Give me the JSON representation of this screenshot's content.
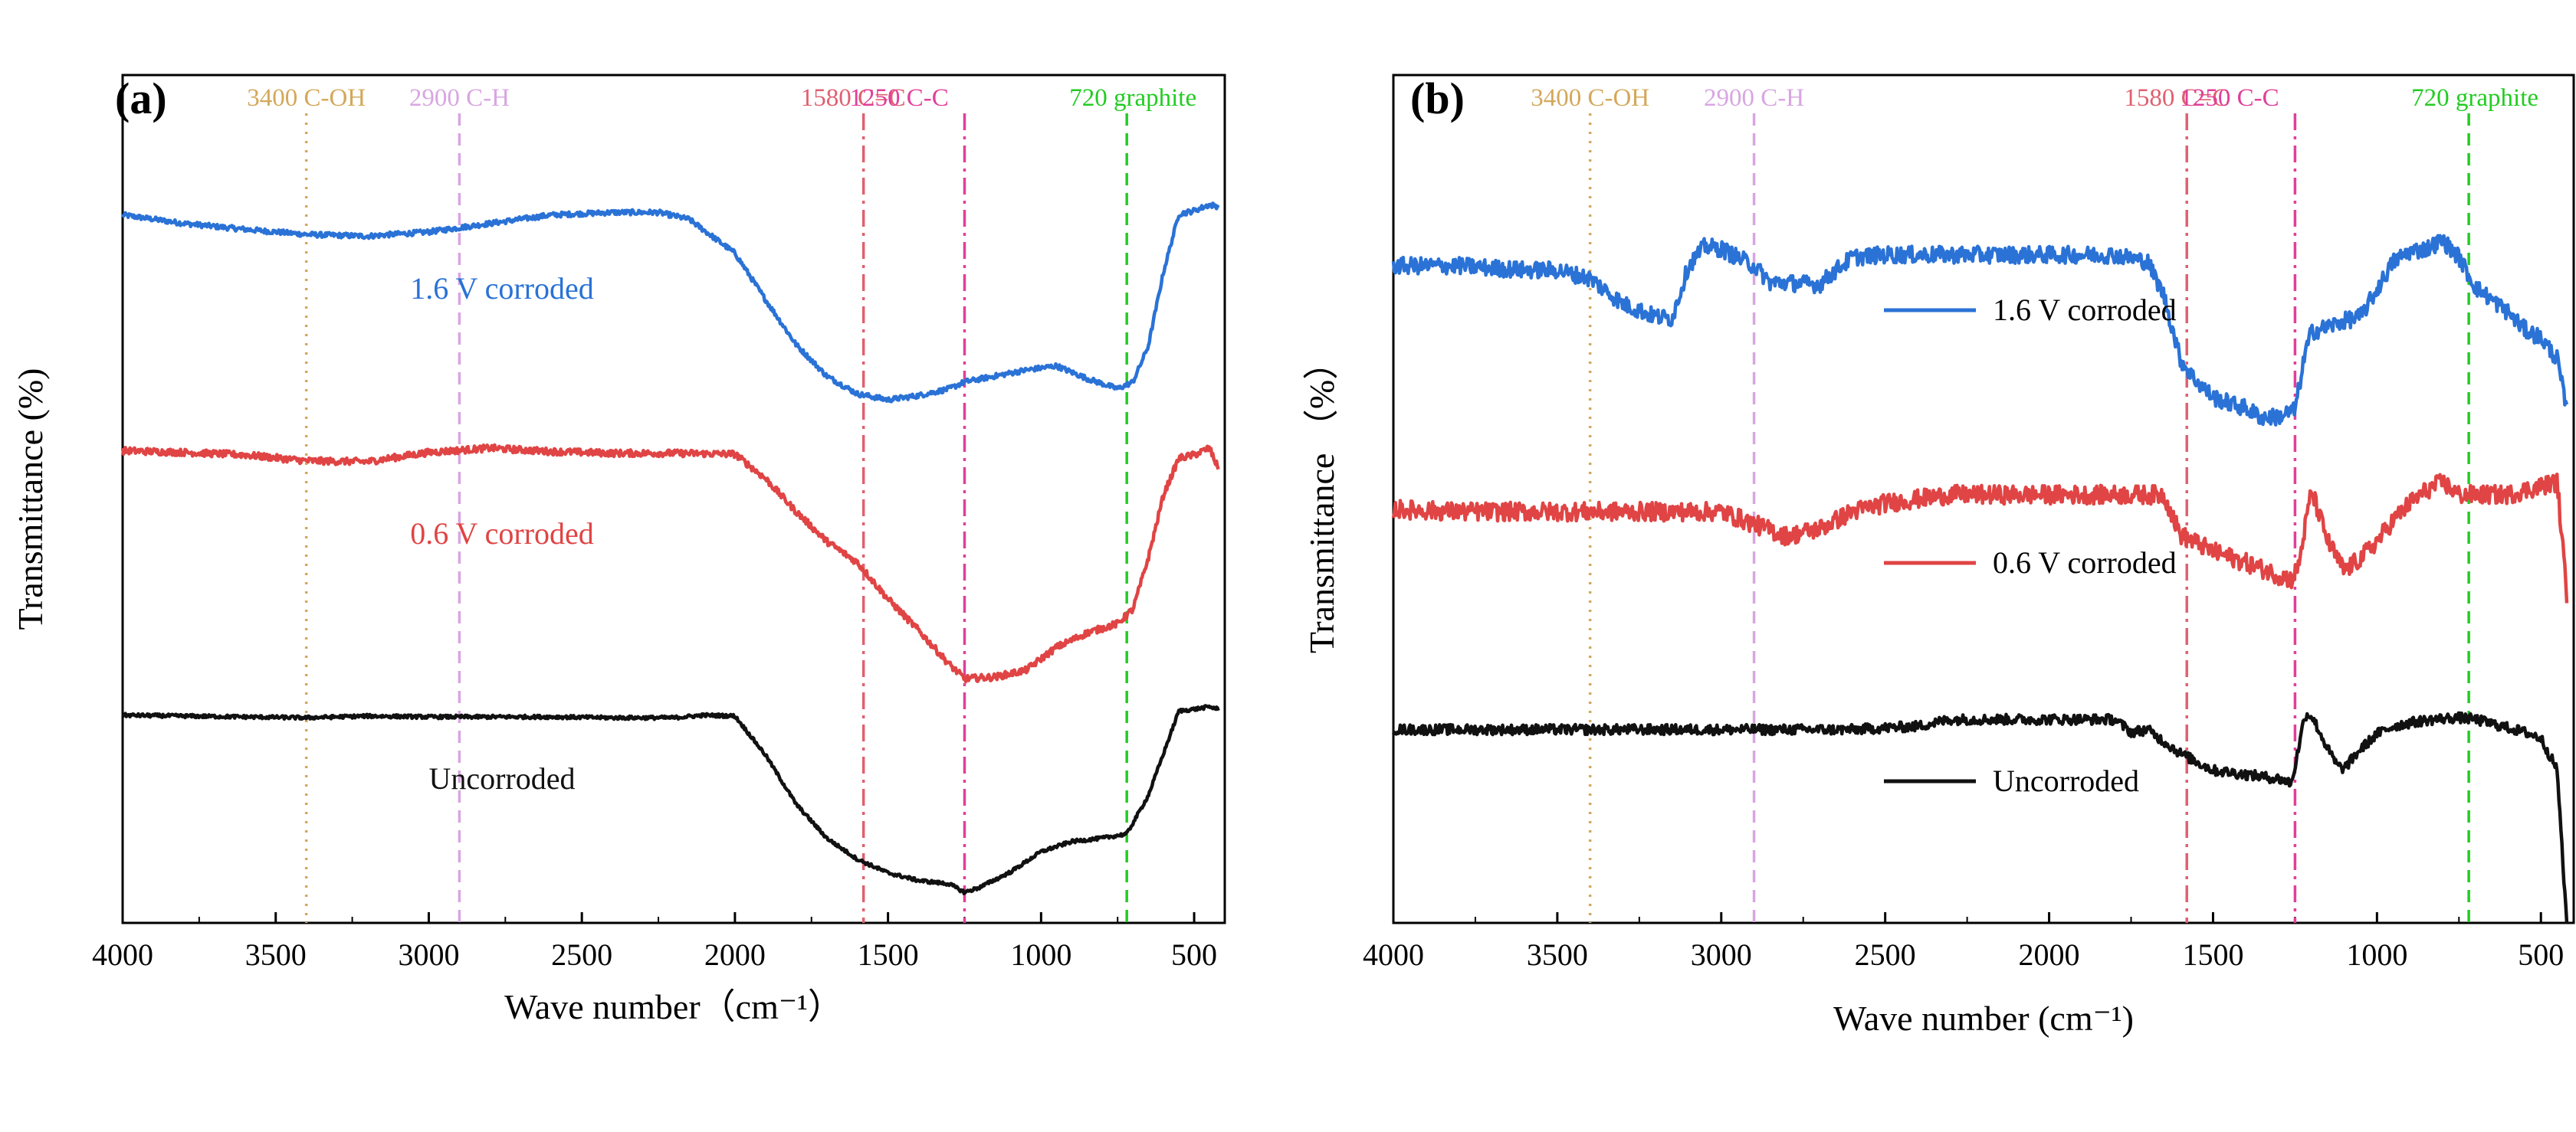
{
  "chart_data": [
    {
      "type": "line",
      "panel_label": "(a)",
      "xlabel": "Wave number（cm⁻¹）",
      "ylabel": "Transmittance (%)",
      "xlim": [
        4000,
        400
      ],
      "x_reversed": true,
      "ylim": [
        0,
        100
      ],
      "xticks": [
        4000,
        3500,
        3000,
        2500,
        2000,
        1500,
        1000,
        500
      ],
      "peaks": [
        {
          "x": 3400,
          "label": "3400 C-OH",
          "color": "#d4a85a",
          "style": "dotted"
        },
        {
          "x": 2900,
          "label": "2900 C-H",
          "color": "#d8a6e2",
          "style": "dashed"
        },
        {
          "x": 1580,
          "label": "1580 C=C",
          "color": "#e06070",
          "style": "dashdot"
        },
        {
          "x": 1250,
          "label": "1250 C-C",
          "color": "#e0409a",
          "style": "dashdot"
        },
        {
          "x": 720,
          "label": "720 graphite",
          "color": "#22cc22",
          "style": "dashed"
        }
      ],
      "series": [
        {
          "name": "1.6 V corroded",
          "color": "#2a72d6",
          "legend": "label",
          "x": [
            4000,
            3800,
            3600,
            3400,
            3200,
            3000,
            2800,
            2600,
            2400,
            2250,
            2150,
            2000,
            1900,
            1800,
            1700,
            1600,
            1500,
            1400,
            1300,
            1250,
            1150,
            1050,
            950,
            850,
            750,
            700,
            650,
            600,
            550,
            500,
            450,
            420
          ],
          "y": [
            83.5,
            82.5,
            81.8,
            81.2,
            81,
            81.5,
            82.5,
            83.5,
            83.8,
            83.8,
            83,
            79,
            73.5,
            68.2,
            64.5,
            62.4,
            61.7,
            62.2,
            63,
            63.8,
            64.5,
            65.2,
            65.7,
            64.2,
            63,
            63.8,
            68,
            76.8,
            83.6,
            84,
            84.7,
            84.5
          ],
          "noise": 0.3
        },
        {
          "name": "0.6 V corroded",
          "color": "#e04444",
          "legend": "label",
          "x": [
            4000,
            3800,
            3600,
            3400,
            3200,
            3000,
            2800,
            2600,
            2400,
            2200,
            2000,
            1900,
            1800,
            1700,
            1600,
            1500,
            1400,
            1300,
            1250,
            1150,
            1050,
            950,
            850,
            750,
            700,
            650,
            600,
            550,
            500,
            450,
            420
          ],
          "y": [
            55.7,
            55.5,
            55.2,
            54.5,
            54.4,
            55.5,
            56,
            55.6,
            55.4,
            55.4,
            55.3,
            52.4,
            48.5,
            45,
            42.5,
            38.2,
            34.5,
            30.5,
            28.8,
            29,
            29.8,
            32.5,
            34.2,
            35.3,
            37,
            43,
            50.5,
            54.8,
            55.2,
            56,
            53.5
          ],
          "noise": 0.4
        },
        {
          "name": "Uncorroded",
          "color": "#111111",
          "legend": "label",
          "x": [
            4000,
            3800,
            3600,
            3400,
            3200,
            3000,
            2800,
            2600,
            2400,
            2200,
            2100,
            2000,
            1900,
            1800,
            1700,
            1600,
            1500,
            1400,
            1300,
            1250,
            1200,
            1100,
            1000,
            900,
            800,
            720,
            650,
            600,
            550,
            500,
            450,
            420
          ],
          "y": [
            24.5,
            24.4,
            24.3,
            24.2,
            24.4,
            24.3,
            24.3,
            24.3,
            24.2,
            24.2,
            24.5,
            24.4,
            19.8,
            14,
            10,
            7.5,
            5.9,
            5,
            4.6,
            3.6,
            4.2,
            6,
            8.4,
            9.6,
            10,
            10.5,
            15,
            20,
            25,
            25.2,
            25.5,
            25.2
          ],
          "noise": 0.2
        }
      ]
    },
    {
      "type": "line",
      "panel_label": "(b)",
      "xlabel": "Wave number (cm⁻¹)",
      "ylabel": "Transmittance （%）",
      "xlim": [
        4000,
        400
      ],
      "x_reversed": true,
      "ylim": [
        0,
        100
      ],
      "xticks": [
        4000,
        3500,
        3000,
        2500,
        2000,
        1500,
        1000,
        500
      ],
      "peaks": [
        {
          "x": 3400,
          "label": "3400 C-OH",
          "color": "#d4a85a",
          "style": "dotted"
        },
        {
          "x": 2900,
          "label": "2900 C-H",
          "color": "#d8a6e2",
          "style": "dashed"
        },
        {
          "x": 1580,
          "label": "1580 C=C",
          "color": "#e06070",
          "style": "dashdot"
        },
        {
          "x": 1250,
          "label": "1250 C-C",
          "color": "#e0409a",
          "style": "dashdot"
        },
        {
          "x": 720,
          "label": "720 graphite",
          "color": "#22cc22",
          "style": "dashed"
        }
      ],
      "series": [
        {
          "name": "1.6 V corroded",
          "color": "#2a72d6",
          "legend": "line",
          "x": [
            4000,
            3800,
            3600,
            3500,
            3400,
            3300,
            3200,
            3150,
            3100,
            3050,
            3000,
            2900,
            2850,
            2800,
            2700,
            2650,
            2600,
            2500,
            2300,
            2000,
            1800,
            1700,
            1650,
            1600,
            1560,
            1500,
            1450,
            1400,
            1350,
            1300,
            1250,
            1220,
            1200,
            1150,
            1100,
            1050,
            1000,
            950,
            900,
            850,
            800,
            750,
            700,
            650,
            600,
            550,
            500,
            450,
            420
          ],
          "y": [
            77.5,
            77.5,
            77,
            77,
            76,
            73,
            71.5,
            71.3,
            77.5,
            79.8,
            79.5,
            77.5,
            75.5,
            75.5,
            75.3,
            77,
            78.5,
            78.8,
            78.8,
            78.8,
            78.8,
            78,
            74,
            66.5,
            64.3,
            62,
            61.3,
            60.7,
            59.6,
            59.7,
            60.5,
            67,
            69.7,
            70.3,
            71,
            71.5,
            74.7,
            78,
            79.2,
            79.5,
            80.5,
            78.5,
            75,
            73.5,
            72,
            70,
            69,
            66.5,
            60
          ],
          "noise": 1.0
        },
        {
          "name": "0.6 V corroded",
          "color": "#e04444",
          "legend": "line",
          "x": [
            4000,
            3800,
            3600,
            3400,
            3200,
            3000,
            2800,
            2700,
            2600,
            2500,
            2300,
            2000,
            1800,
            1650,
            1600,
            1500,
            1400,
            1300,
            1260,
            1240,
            1200,
            1150,
            1100,
            1050,
            1000,
            950,
            900,
            850,
            800,
            750,
            700,
            650,
            600,
            550,
            500,
            450,
            420
          ],
          "y": [
            48.8,
            48.5,
            48.5,
            48.5,
            48.5,
            48.5,
            45.6,
            46.5,
            48.5,
            49.5,
            50.5,
            50.5,
            50.5,
            50.5,
            45.8,
            43.8,
            42.5,
            41,
            40.5,
            42,
            51,
            45,
            41.5,
            43,
            45,
            47.5,
            49.5,
            51,
            52,
            50.5,
            50.5,
            50.5,
            50.5,
            51,
            51.5,
            52,
            38
          ],
          "noise": 1.1
        },
        {
          "name": "Uncorroded",
          "color": "#111111",
          "legend": "line",
          "x": [
            4000,
            3800,
            3600,
            3400,
            3200,
            3000,
            2800,
            2600,
            2400,
            2300,
            2000,
            1800,
            1750,
            1700,
            1600,
            1500,
            1400,
            1300,
            1260,
            1240,
            1220,
            1200,
            1150,
            1120,
            1100,
            1050,
            1000,
            950,
            900,
            850,
            800,
            750,
            700,
            650,
            600,
            550,
            500,
            450,
            430,
            420
          ],
          "y": [
            22.8,
            22.8,
            22.8,
            22.8,
            22.8,
            22.8,
            22.8,
            22.8,
            23.2,
            24,
            24,
            24,
            22.5,
            22.8,
            20,
            18,
            17.5,
            17,
            16.5,
            20.5,
            24.5,
            24.5,
            20.5,
            18.5,
            18.2,
            20.5,
            22.3,
            23.2,
            23.6,
            23.9,
            24.1,
            24.2,
            24,
            23.5,
            23,
            22.5,
            21.8,
            18,
            5,
            0
          ],
          "noise": 0.6
        }
      ]
    }
  ]
}
